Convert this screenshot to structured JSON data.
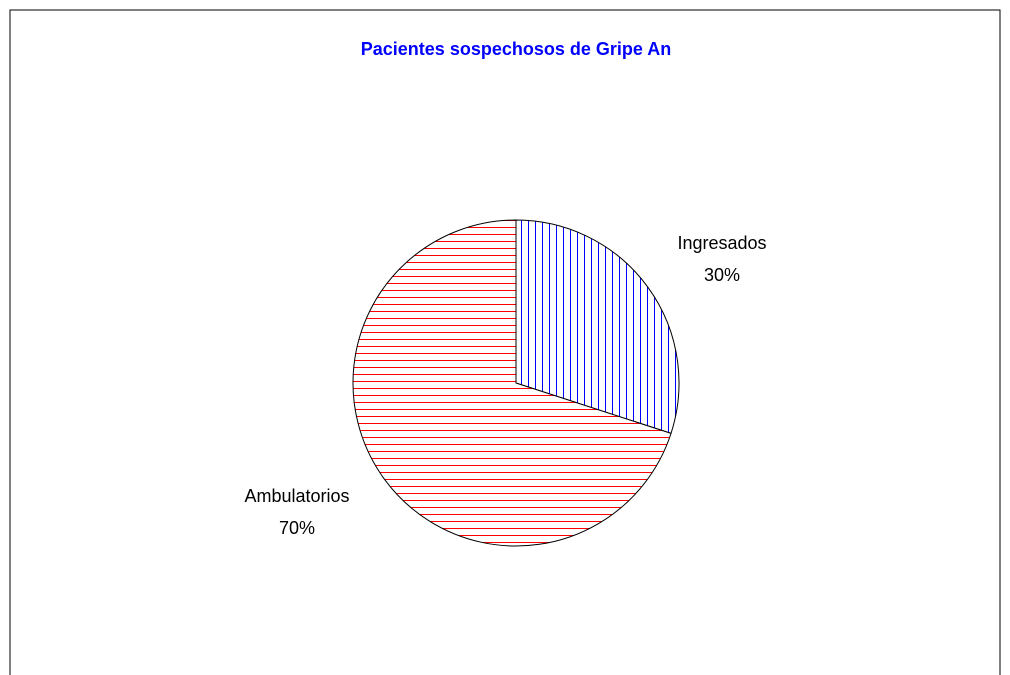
{
  "chart_data": {
    "type": "pie",
    "title": "Pacientes sospechosos de Gripe An",
    "labels": [
      "Ingresados",
      "Ambulatorios"
    ],
    "values": [
      30,
      70
    ],
    "value_labels": [
      "30%",
      "70%"
    ],
    "colors": [
      "#0000ff",
      "#ff0000"
    ]
  }
}
